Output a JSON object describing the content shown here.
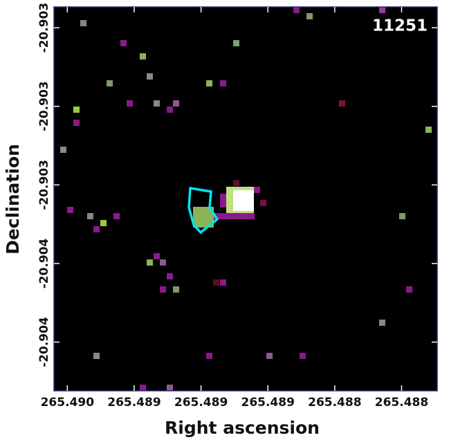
{
  "chart_data": {
    "type": "image",
    "xlabel": "Right ascension",
    "ylabel": "Declination",
    "annotation": "11251",
    "xlim": [
      265.48966,
      265.48794
    ],
    "ylim": [
      -20.903924,
      -20.902947
    ],
    "xticks": [
      {
        "value": 265.4896,
        "label": "265.490"
      },
      {
        "value": 265.4893,
        "label": "265.489"
      },
      {
        "value": 265.489,
        "label": "265.489"
      },
      {
        "value": 265.4887,
        "label": "265.489"
      },
      {
        "value": 265.4884,
        "label": "265.488"
      },
      {
        "value": 265.4881,
        "label": "265.488"
      }
    ],
    "yticks": [
      {
        "value": -20.903,
        "label": "-20.903"
      },
      {
        "value": -20.9032,
        "label": "-20.903"
      },
      {
        "value": -20.9034,
        "label": "-20.903"
      },
      {
        "value": -20.9036,
        "label": "-20.904"
      },
      {
        "value": -20.9038,
        "label": "-20.904"
      }
    ]
  }
}
